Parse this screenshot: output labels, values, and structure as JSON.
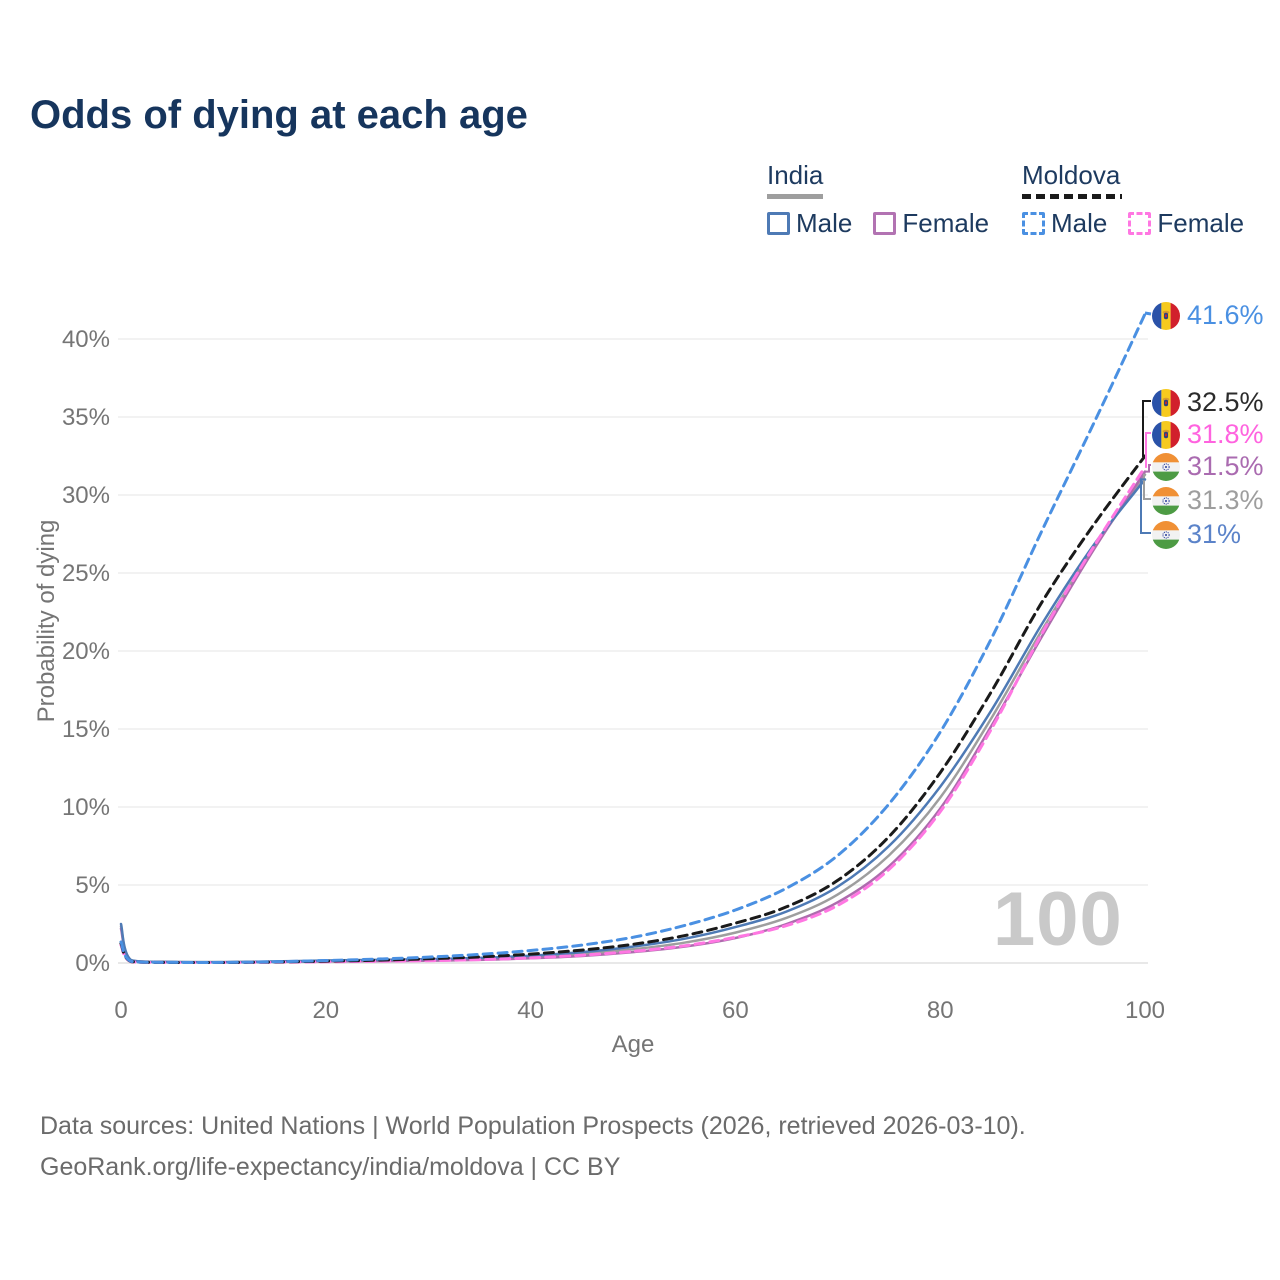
{
  "title": "Odds of dying at each age",
  "watermark": "100",
  "legend": {
    "groups": [
      {
        "country": "India",
        "line_style": "solid",
        "underline_color": "#9e9e9e",
        "items": [
          {
            "label": "Male",
            "color": "#4e7ab5"
          },
          {
            "label": "Female",
            "color": "#b273b2"
          }
        ]
      },
      {
        "country": "Moldova",
        "line_style": "dashed",
        "underline_color": "#1a1a1a",
        "items": [
          {
            "label": "Male",
            "color": "#4a90e2"
          },
          {
            "label": "Female",
            "color": "#ff77e2"
          }
        ]
      }
    ]
  },
  "footer": {
    "line1": "Data sources: United Nations | World Population Prospects (2026, retrieved 2026-03-10).",
    "line2": "GeoRank.org/life-expectancy/india/moldova | CC BY"
  },
  "chart_data": {
    "type": "line",
    "title": "Odds of dying at each age",
    "xlabel": "Age",
    "ylabel": "Probability of dying",
    "xlim": [
      0,
      100
    ],
    "ylim": [
      0,
      42
    ],
    "x_ticks": [
      0,
      20,
      40,
      60,
      80,
      100
    ],
    "y_ticks": [
      "0%",
      "5%",
      "10%",
      "15%",
      "20%",
      "25%",
      "30%",
      "35%",
      "40%"
    ],
    "grid": "horizontal",
    "legend_position": "top-right",
    "x": [
      0,
      1,
      5,
      10,
      15,
      20,
      25,
      30,
      35,
      40,
      45,
      50,
      55,
      60,
      65,
      70,
      75,
      80,
      85,
      90,
      95,
      100
    ],
    "series": [
      {
        "name": "India Both sexes",
        "country": "india",
        "sex": "both",
        "color": "#9e9e9e",
        "dash": "solid",
        "end_label": "31.3%",
        "end_value": 31.3,
        "label_color": "#9e9e9e",
        "values": [
          2.35,
          0.17,
          0.065,
          0.055,
          0.085,
          0.13,
          0.16,
          0.2,
          0.27,
          0.39,
          0.58,
          0.88,
          1.3,
          1.95,
          2.9,
          4.4,
          6.9,
          10.6,
          15.7,
          21.4,
          26.6,
          31.3
        ]
      },
      {
        "name": "India Female",
        "country": "india",
        "sex": "female",
        "color": "#ad6cad",
        "dash": "solid",
        "end_label": "31.5%",
        "end_value": 31.5,
        "label_color": "#aa6bb0",
        "values": [
          2.2,
          0.16,
          0.06,
          0.05,
          0.07,
          0.1,
          0.12,
          0.15,
          0.2,
          0.3,
          0.45,
          0.7,
          1.05,
          1.6,
          2.5,
          3.9,
          6.2,
          9.9,
          15.2,
          21.0,
          26.5,
          31.5
        ]
      },
      {
        "name": "India Male",
        "country": "india",
        "sex": "male",
        "color": "#4e7ab5",
        "dash": "solid",
        "end_label": "31%",
        "end_value": 31.0,
        "label_color": "#5b83c9",
        "values": [
          2.5,
          0.18,
          0.07,
          0.06,
          0.1,
          0.16,
          0.2,
          0.25,
          0.33,
          0.47,
          0.7,
          1.05,
          1.55,
          2.3,
          3.3,
          4.9,
          7.5,
          11.3,
          16.2,
          21.8,
          26.8,
          31.0
        ]
      },
      {
        "name": "Moldova Female",
        "country": "moldova",
        "sex": "female",
        "color": "#ff77e2",
        "dash": "dashed",
        "end_label": "31.8%",
        "end_value": 31.8,
        "label_color": "#ff63df",
        "values": [
          1.15,
          0.08,
          0.03,
          0.03,
          0.05,
          0.08,
          0.11,
          0.15,
          0.22,
          0.33,
          0.5,
          0.75,
          1.1,
          1.65,
          2.4,
          3.7,
          6.0,
          9.7,
          15.0,
          21.2,
          26.7,
          31.8
        ]
      },
      {
        "name": "Moldova Both sexes",
        "country": "moldova",
        "sex": "both",
        "color": "#1a1a1a",
        "dash": "dashed",
        "end_label": "32.5%",
        "end_value": 32.5,
        "label_color": "#2b2b2b",
        "values": [
          1.25,
          0.09,
          0.035,
          0.035,
          0.065,
          0.12,
          0.18,
          0.27,
          0.39,
          0.57,
          0.83,
          1.2,
          1.75,
          2.55,
          3.6,
          5.3,
          8.1,
          12.2,
          17.4,
          23.2,
          28.1,
          32.5
        ]
      },
      {
        "name": "Moldova Male",
        "country": "moldova",
        "sex": "male",
        "color": "#4a90e2",
        "dash": "dashed",
        "end_label": "41.6%",
        "end_value": 41.6,
        "label_color": "#4a90e2",
        "values": [
          1.35,
          0.1,
          0.04,
          0.04,
          0.08,
          0.16,
          0.25,
          0.38,
          0.55,
          0.8,
          1.15,
          1.65,
          2.4,
          3.4,
          4.8,
          6.9,
          10.2,
          14.8,
          20.8,
          27.8,
          34.6,
          41.6
        ]
      }
    ]
  }
}
